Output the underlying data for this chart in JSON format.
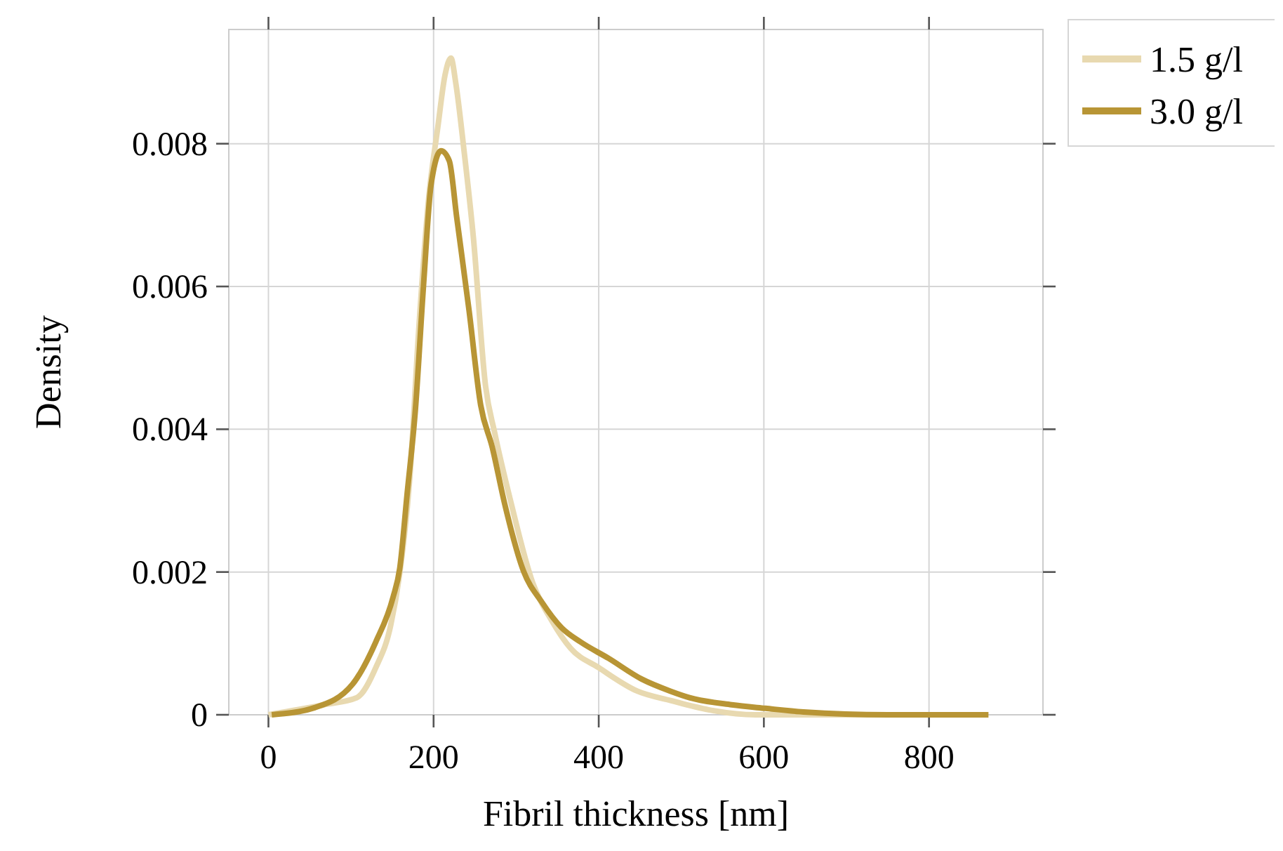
{
  "chart_data": {
    "type": "line",
    "xlabel": "Fibril thickness [nm]",
    "ylabel": "Density",
    "xlim": [
      -48,
      938
    ],
    "ylim": [
      0,
      0.0096
    ],
    "xticks": [
      0,
      200,
      400,
      600,
      800
    ],
    "yticks": [
      0,
      0.002,
      0.004,
      0.006,
      0.008
    ],
    "grid": true,
    "legend": "top right",
    "line_style": "solid",
    "marker": "none",
    "series": [
      {
        "name": "1.5 g/l",
        "color": "#e8d9b0",
        "x": [
          0,
          67,
          107,
          130,
          148,
          159,
          171,
          182,
          194,
          205,
          214,
          221,
          227,
          237,
          248,
          263,
          274,
          294,
          320,
          343,
          366,
          400,
          447,
          487,
          533,
          590,
          700,
          870
        ],
        "values": [
          0,
          0.00014,
          0.00024,
          0.00066,
          0.00125,
          0.00198,
          0.00329,
          0.00539,
          0.00723,
          0.00822,
          0.00897,
          0.0092,
          0.00884,
          0.00789,
          0.00671,
          0.0046,
          0.00395,
          0.00296,
          0.00185,
          0.00132,
          0.00093,
          0.00066,
          0.00033,
          0.0002,
          7e-05,
          0,
          0,
          0
        ]
      },
      {
        "name": "3.0 g/l",
        "color": "#b89535",
        "x": [
          4,
          56,
          102,
          130,
          151,
          159,
          168,
          178,
          188,
          197,
          209,
          219,
          228,
          243,
          257,
          271,
          286,
          309,
          331,
          355,
          378,
          412,
          452,
          487,
          510,
          561,
          602,
          648,
          750,
          872
        ],
        "values": [
          0,
          0.0001,
          0.00043,
          0.00102,
          0.00165,
          0.00205,
          0.0031,
          0.00428,
          0.00605,
          0.00743,
          0.0079,
          0.00776,
          0.00697,
          0.00566,
          0.00434,
          0.00375,
          0.00296,
          0.00201,
          0.00158,
          0.00122,
          0.00102,
          0.00079,
          0.0005,
          0.00033,
          0.00024,
          0.00014,
          9e-05,
          4e-05,
          0,
          0
        ]
      }
    ]
  }
}
